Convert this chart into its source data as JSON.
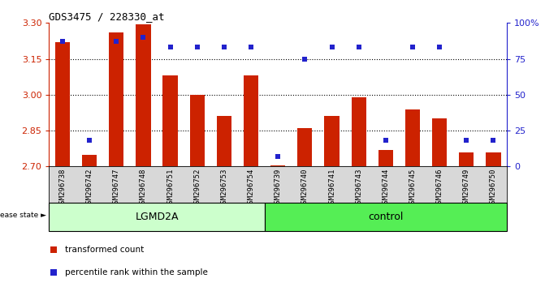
{
  "title": "GDS3475 / 228330_at",
  "samples": [
    "GSM296738",
    "GSM296742",
    "GSM296747",
    "GSM296748",
    "GSM296751",
    "GSM296752",
    "GSM296753",
    "GSM296754",
    "GSM296739",
    "GSM296740",
    "GSM296741",
    "GSM296743",
    "GSM296744",
    "GSM296745",
    "GSM296746",
    "GSM296749",
    "GSM296750"
  ],
  "transformed_count": [
    3.22,
    2.75,
    3.26,
    3.295,
    3.08,
    3.0,
    2.91,
    3.08,
    2.705,
    2.86,
    2.91,
    2.99,
    2.77,
    2.94,
    2.9,
    2.76,
    2.76
  ],
  "percentile_rank_pct": [
    87,
    18,
    87,
    90,
    83,
    83,
    83,
    83,
    7,
    75,
    83,
    83,
    18,
    83,
    83,
    18,
    18
  ],
  "ymin": 2.7,
  "ymax": 3.3,
  "yticks": [
    2.7,
    2.85,
    3.0,
    3.15,
    3.3
  ],
  "right_yticks": [
    0,
    25,
    50,
    75,
    100
  ],
  "bar_color": "#cc2200",
  "marker_color": "#2222cc",
  "group_labels": [
    "LGMD2A",
    "control"
  ],
  "lgmd2a_n": 8,
  "ctrl_n": 9,
  "disease_state_label": "disease state",
  "legend_items": [
    "transformed count",
    "percentile rank within the sample"
  ],
  "lgmd2a_color": "#ccffcc",
  "control_color": "#55ee55",
  "sample_bg_color": "#d8d8d8",
  "plot_bg": "#ffffff"
}
